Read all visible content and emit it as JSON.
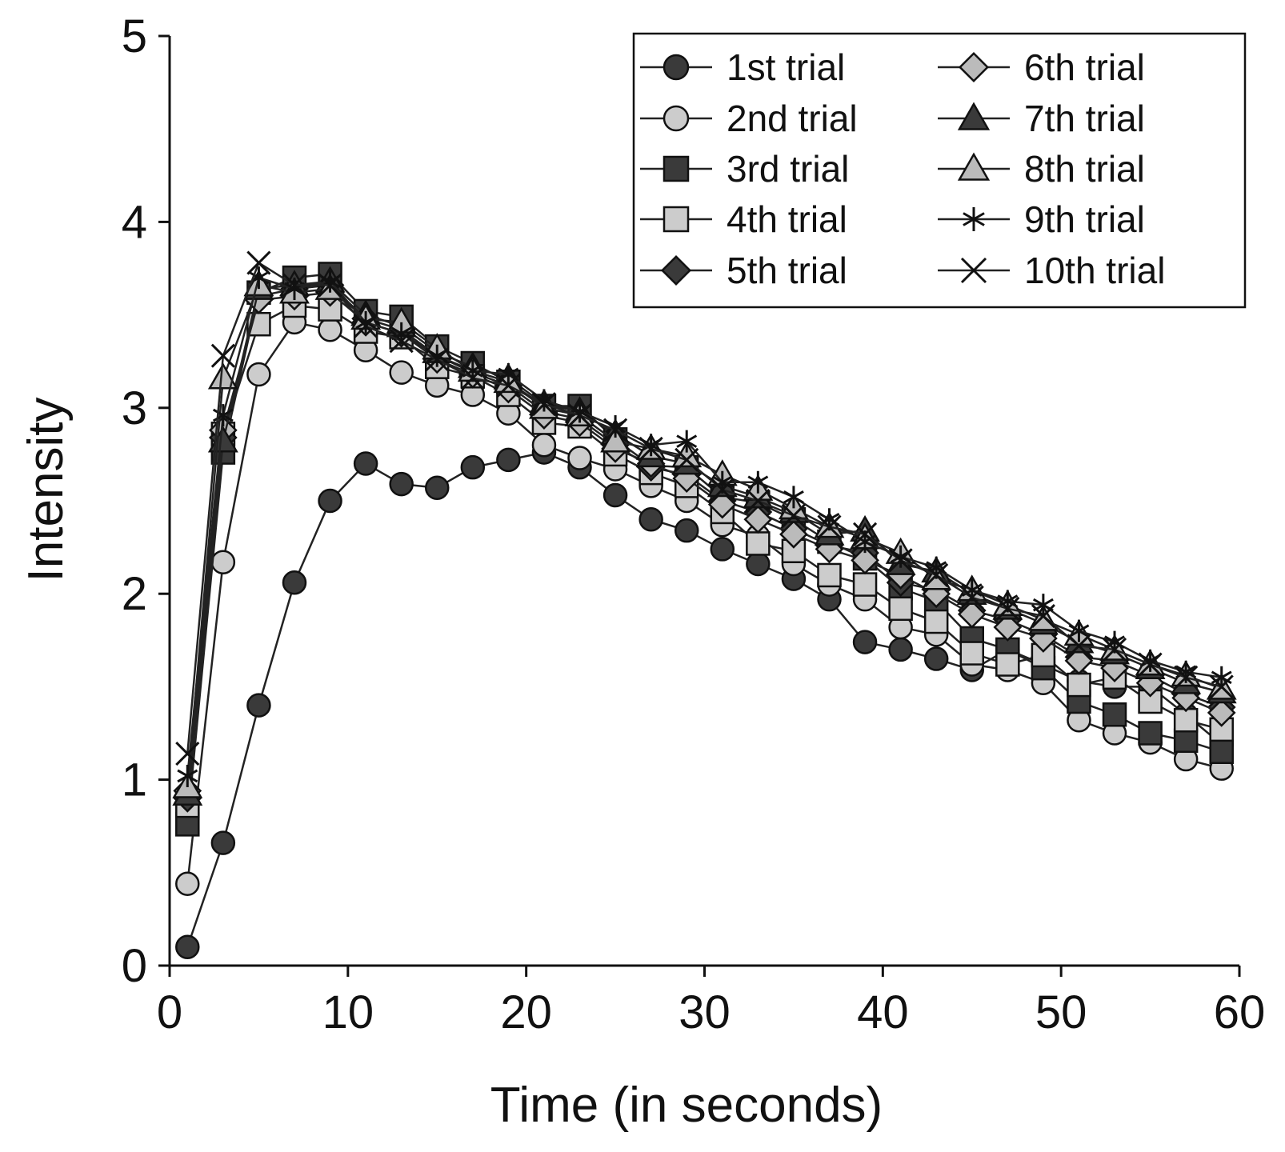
{
  "chart_data": {
    "type": "line",
    "title": "",
    "xlabel": "Time (in seconds)",
    "ylabel": "Intensity",
    "xlim": [
      0,
      60
    ],
    "ylim": [
      0,
      5
    ],
    "xticks": [
      0,
      10,
      20,
      30,
      40,
      50,
      60
    ],
    "yticks": [
      0,
      1,
      2,
      3,
      4,
      5
    ],
    "grid": false,
    "legend": "top-right",
    "x": [
      1,
      3,
      5,
      7,
      9,
      11,
      13,
      15,
      17,
      19,
      21,
      23,
      25,
      27,
      29,
      31,
      33,
      35,
      37,
      39,
      41,
      43,
      45,
      47,
      49,
      51,
      53,
      55,
      57,
      59
    ],
    "series": [
      {
        "name": "1st trial",
        "marker": "circle",
        "fill": "#3a3a3a",
        "values": [
          0.1,
          0.66,
          1.4,
          2.06,
          2.5,
          2.7,
          2.59,
          2.57,
          2.68,
          2.72,
          2.76,
          2.68,
          2.53,
          2.4,
          2.34,
          2.24,
          2.16,
          2.08,
          1.97,
          1.74,
          1.7,
          1.65,
          1.59,
          1.7,
          1.62,
          1.53,
          1.5,
          1.5,
          1.35,
          1.19
        ]
      },
      {
        "name": "2nd trial",
        "marker": "circle",
        "fill": "#cccccc",
        "values": [
          0.44,
          2.17,
          3.18,
          3.46,
          3.42,
          3.31,
          3.19,
          3.12,
          3.07,
          2.97,
          2.8,
          2.73,
          2.67,
          2.58,
          2.5,
          2.37,
          2.31,
          2.16,
          2.05,
          1.97,
          1.82,
          1.78,
          1.62,
          1.59,
          1.52,
          1.32,
          1.25,
          1.2,
          1.11,
          1.06
        ]
      },
      {
        "name": "3rd trial",
        "marker": "square",
        "fill": "#3a3a3a",
        "values": [
          0.76,
          2.76,
          3.62,
          3.7,
          3.72,
          3.52,
          3.49,
          3.33,
          3.24,
          3.14,
          3.01,
          3.01,
          2.83,
          2.69,
          2.68,
          2.52,
          2.49,
          2.4,
          2.28,
          2.19,
          2.03,
          1.96,
          1.76,
          1.7,
          1.6,
          1.42,
          1.35,
          1.25,
          1.21,
          1.15
        ]
      },
      {
        "name": "4th trial",
        "marker": "square",
        "fill": "#cccccc",
        "values": [
          0.86,
          2.86,
          3.45,
          3.55,
          3.53,
          3.41,
          3.38,
          3.22,
          3.17,
          3.07,
          2.92,
          2.9,
          2.75,
          2.65,
          2.58,
          2.44,
          2.27,
          2.23,
          2.1,
          2.05,
          1.92,
          1.85,
          1.68,
          1.62,
          1.67,
          1.51,
          1.55,
          1.42,
          1.32,
          1.27
        ]
      },
      {
        "name": "5th trial",
        "marker": "diamond",
        "fill": "#3a3a3a",
        "values": [
          0.9,
          2.84,
          3.6,
          3.64,
          3.66,
          3.48,
          3.42,
          3.28,
          3.19,
          3.12,
          2.98,
          2.94,
          2.8,
          2.68,
          2.64,
          2.5,
          2.44,
          2.35,
          2.26,
          2.22,
          2.06,
          2.02,
          1.91,
          1.86,
          1.78,
          1.66,
          1.64,
          1.56,
          1.46,
          1.39
        ]
      },
      {
        "name": "6th trial",
        "marker": "diamond",
        "fill": "#bbbbbb",
        "values": [
          0.94,
          2.88,
          3.58,
          3.6,
          3.62,
          3.46,
          3.4,
          3.26,
          3.18,
          3.1,
          2.96,
          2.92,
          2.78,
          2.7,
          2.62,
          2.48,
          2.4,
          2.32,
          2.24,
          2.18,
          2.1,
          2.0,
          1.89,
          1.82,
          1.76,
          1.64,
          1.6,
          1.52,
          1.44,
          1.36
        ]
      },
      {
        "name": "7th trial",
        "marker": "triangle",
        "fill": "#3a3a3a",
        "values": [
          0.92,
          2.82,
          3.64,
          3.66,
          3.68,
          3.5,
          3.44,
          3.3,
          3.22,
          3.16,
          3.02,
          2.98,
          2.86,
          2.74,
          2.7,
          2.58,
          2.52,
          2.44,
          2.32,
          2.34,
          2.16,
          2.12,
          2.0,
          1.92,
          1.84,
          1.74,
          1.68,
          1.6,
          1.52,
          1.47
        ]
      },
      {
        "name": "8th trial",
        "marker": "triangle",
        "fill": "#bbbbbb",
        "values": [
          0.96,
          3.16,
          3.66,
          3.62,
          3.64,
          3.48,
          3.46,
          3.32,
          3.2,
          3.14,
          3.0,
          2.96,
          2.82,
          2.78,
          2.74,
          2.64,
          2.56,
          2.46,
          2.36,
          2.3,
          2.22,
          2.08,
          2.02,
          1.94,
          1.86,
          1.78,
          1.7,
          1.62,
          1.56,
          1.49
        ]
      },
      {
        "name": "9th trial",
        "marker": "asterisk",
        "fill": "#111111",
        "values": [
          1.02,
          2.96,
          3.7,
          3.64,
          3.68,
          3.46,
          3.4,
          3.28,
          3.2,
          3.18,
          3.04,
          2.98,
          2.9,
          2.8,
          2.82,
          2.6,
          2.6,
          2.52,
          2.4,
          2.28,
          2.2,
          2.14,
          2.02,
          1.96,
          1.94,
          1.8,
          1.74,
          1.64,
          1.58,
          1.55
        ]
      },
      {
        "name": "10th trial",
        "marker": "x",
        "fill": "#111111",
        "values": [
          1.14,
          3.28,
          3.78,
          3.66,
          3.66,
          3.44,
          3.36,
          3.26,
          3.16,
          3.12,
          3.02,
          2.96,
          2.88,
          2.78,
          2.72,
          2.56,
          2.5,
          2.42,
          2.36,
          2.32,
          2.18,
          2.1,
          1.98,
          1.92,
          1.88,
          1.72,
          1.7,
          1.62,
          1.55,
          1.5
        ]
      }
    ]
  }
}
